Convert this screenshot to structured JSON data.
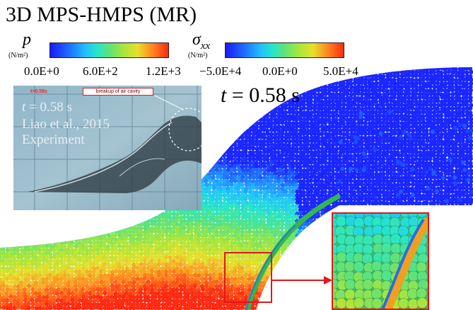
{
  "figure": {
    "title": "3D MPS-HMPS (MR)",
    "time_label": "t = 0.58 s",
    "time_symbol": "t",
    "time_value": "= 0.58 s"
  },
  "legends": {
    "pressure": {
      "symbol": "p",
      "unit": "(N/m²)",
      "min_label": "0.0E+0",
      "mid_label": "6.0E+2",
      "max_label": "1.2E+3"
    },
    "stress": {
      "symbol": "σxx",
      "unit": "(N/m²)",
      "min_label": "−5.0E+4",
      "mid_label": "0.0E+0",
      "max_label": "5.0E+4"
    },
    "colormap": [
      "#1a1aff",
      "#1f6dff",
      "#22c0ff",
      "#27e6c8",
      "#5fe27a",
      "#a6e63c",
      "#e6e02c",
      "#ff8a1f",
      "#ff2a12"
    ]
  },
  "experiment_photo": {
    "tag": "t=0.58s",
    "callout": "breakup of air cavity",
    "time": "= 0.58 s",
    "reference": "Liao et al., 2015",
    "kind": "Experiment"
  },
  "colors": {
    "highlight_box": "#e01818",
    "particle_low": "#1a2a9a",
    "particle_high": "#e8e020"
  }
}
